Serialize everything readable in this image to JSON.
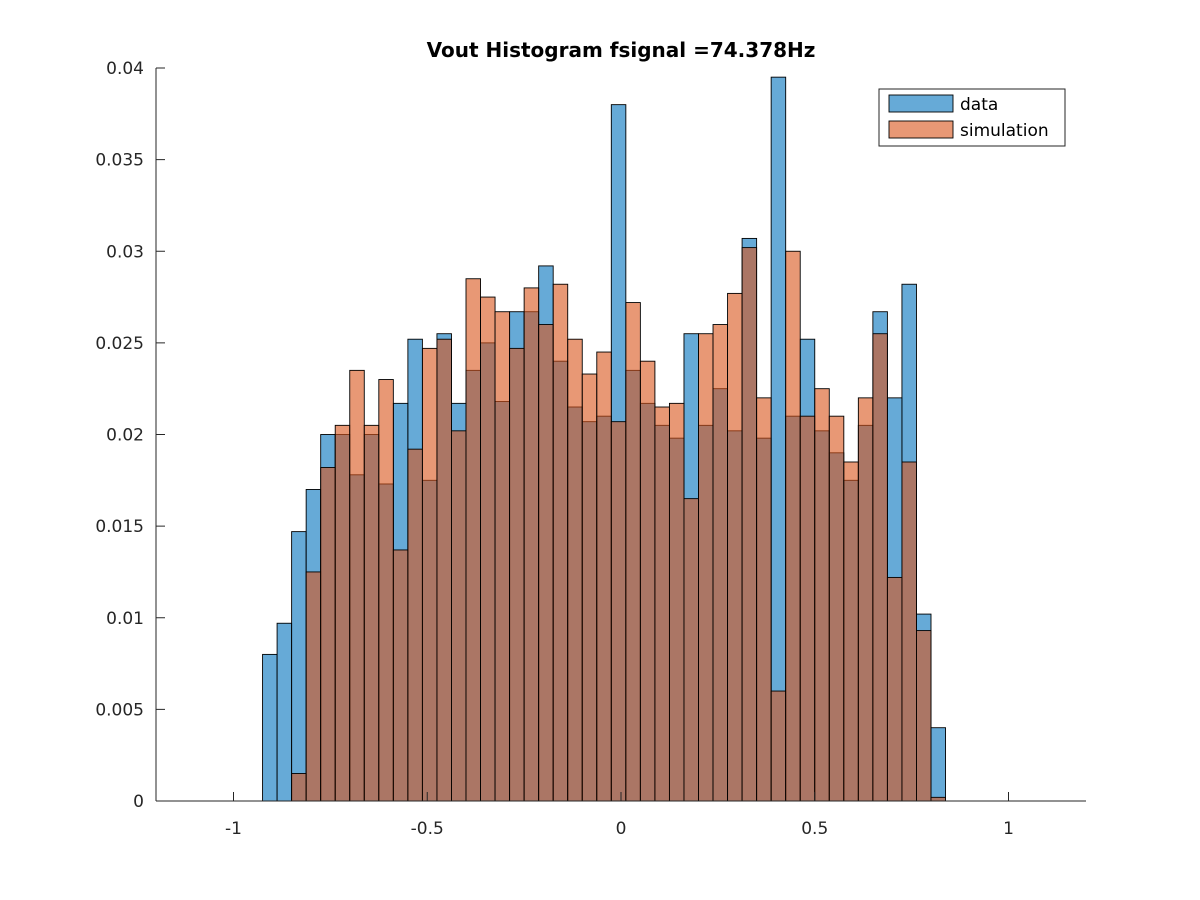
{
  "chart_data": {
    "type": "bar",
    "title": "Vout Histogram fsignal =74.378Hz",
    "xlabel": "",
    "ylabel": "",
    "xlim": [
      -1.2,
      1.2
    ],
    "ylim": [
      0,
      0.04
    ],
    "xticks": [
      -1,
      -0.5,
      0,
      0.5,
      1
    ],
    "xtick_labels": [
      "-1",
      "-0.5",
      "0",
      "0.5",
      "1"
    ],
    "yticks": [
      0,
      0.005,
      0.01,
      0.015,
      0.02,
      0.025,
      0.03,
      0.035,
      0.04
    ],
    "ytick_labels": [
      "0",
      "0.005",
      "0.01",
      "0.015",
      "0.02",
      "0.025",
      "0.03",
      "0.035",
      "0.04"
    ],
    "grid": false,
    "legend_position": "top-right",
    "bin_start": -0.925,
    "bin_width": 0.0375,
    "series": [
      {
        "name": "data",
        "color": "#0072BD",
        "values": [
          0.008,
          0.0097,
          0.0147,
          0.017,
          0.02,
          0.02,
          0.0178,
          0.02,
          0.0173,
          0.0217,
          0.0252,
          0.0175,
          0.0255,
          0.0217,
          0.0235,
          0.025,
          0.0218,
          0.0267,
          0.0267,
          0.0292,
          0.024,
          0.0215,
          0.0207,
          0.021,
          0.038,
          0.0235,
          0.0217,
          0.0205,
          0.0198,
          0.0255,
          0.0205,
          0.0225,
          0.0202,
          0.0307,
          0.0198,
          0.0395,
          0.021,
          0.0252,
          0.0202,
          0.019,
          0.0175,
          0.0205,
          0.0267,
          0.022,
          0.0282,
          0.0102,
          0.004
        ]
      },
      {
        "name": "simulation",
        "color": "#D95319",
        "values": [
          0.0,
          0.0,
          0.0015,
          0.0125,
          0.0182,
          0.0205,
          0.0235,
          0.0205,
          0.023,
          0.0137,
          0.0192,
          0.0247,
          0.0252,
          0.0202,
          0.0285,
          0.0275,
          0.0267,
          0.0247,
          0.028,
          0.026,
          0.0282,
          0.0252,
          0.0233,
          0.0245,
          0.0207,
          0.0272,
          0.024,
          0.0215,
          0.0217,
          0.0165,
          0.0255,
          0.026,
          0.0277,
          0.0302,
          0.022,
          0.006,
          0.03,
          0.021,
          0.0225,
          0.021,
          0.0185,
          0.022,
          0.0255,
          0.0122,
          0.0185,
          0.0093,
          0.0002
        ]
      }
    ]
  }
}
